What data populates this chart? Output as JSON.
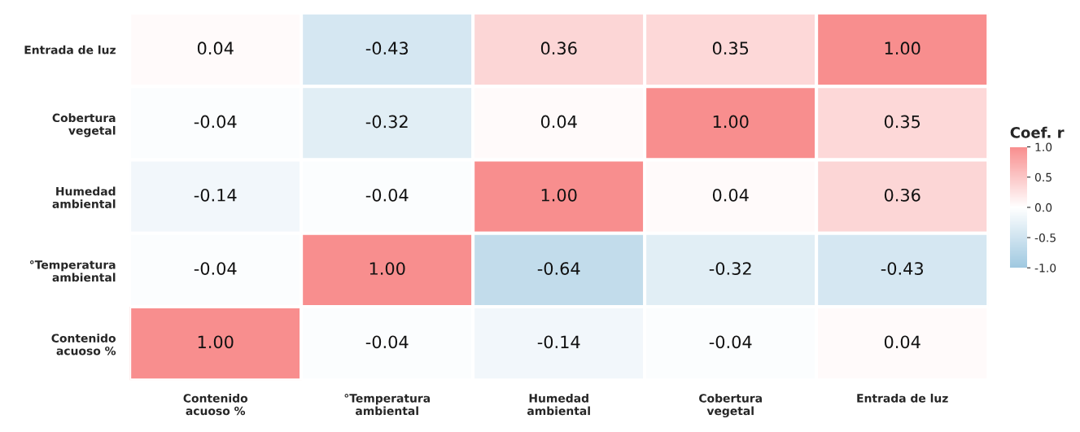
{
  "chart_data": {
    "type": "heatmap",
    "categories": [
      "Contenido\nacuoso %",
      "°Temperatura\nambiental",
      "Humedad\nambiental",
      "Cobertura\nvegetal",
      "Entrada de luz"
    ],
    "y_categories": [
      "Entrada de luz",
      "Cobertura\nvegetal",
      "Humedad\nambiental",
      "°Temperatura\nambiental",
      "Contenido\nacuoso %"
    ],
    "cells": [
      [
        0.04,
        -0.43,
        0.36,
        0.35,
        1.0
      ],
      [
        -0.04,
        -0.32,
        0.04,
        1.0,
        0.35
      ],
      [
        -0.14,
        -0.04,
        1.0,
        0.04,
        0.36
      ],
      [
        -0.04,
        1.0,
        -0.64,
        -0.32,
        -0.43
      ],
      [
        1.0,
        -0.04,
        -0.14,
        -0.04,
        0.04
      ]
    ],
    "cell_labels": [
      [
        "0.04",
        "-0.43",
        "0.36",
        "0.35",
        "1.00"
      ],
      [
        "-0.04",
        "-0.32",
        "0.04",
        "1.00",
        "0.35"
      ],
      [
        "-0.14",
        "-0.04",
        "1.00",
        "0.04",
        "0.36"
      ],
      [
        "-0.04",
        "1.00",
        "-0.64",
        "-0.32",
        "-0.43"
      ],
      [
        "1.00",
        "-0.04",
        "-0.14",
        "-0.04",
        "0.04"
      ]
    ],
    "clabel": "Coef. r",
    "clim": [
      -1.0,
      1.0
    ],
    "cticks": [
      {
        "value": 1.0,
        "label": "1.0"
      },
      {
        "value": 0.5,
        "label": "0.5"
      },
      {
        "value": 0.0,
        "label": "0.0"
      },
      {
        "value": -0.5,
        "label": "-0.5"
      },
      {
        "value": -1.0,
        "label": "-1.0"
      }
    ]
  }
}
